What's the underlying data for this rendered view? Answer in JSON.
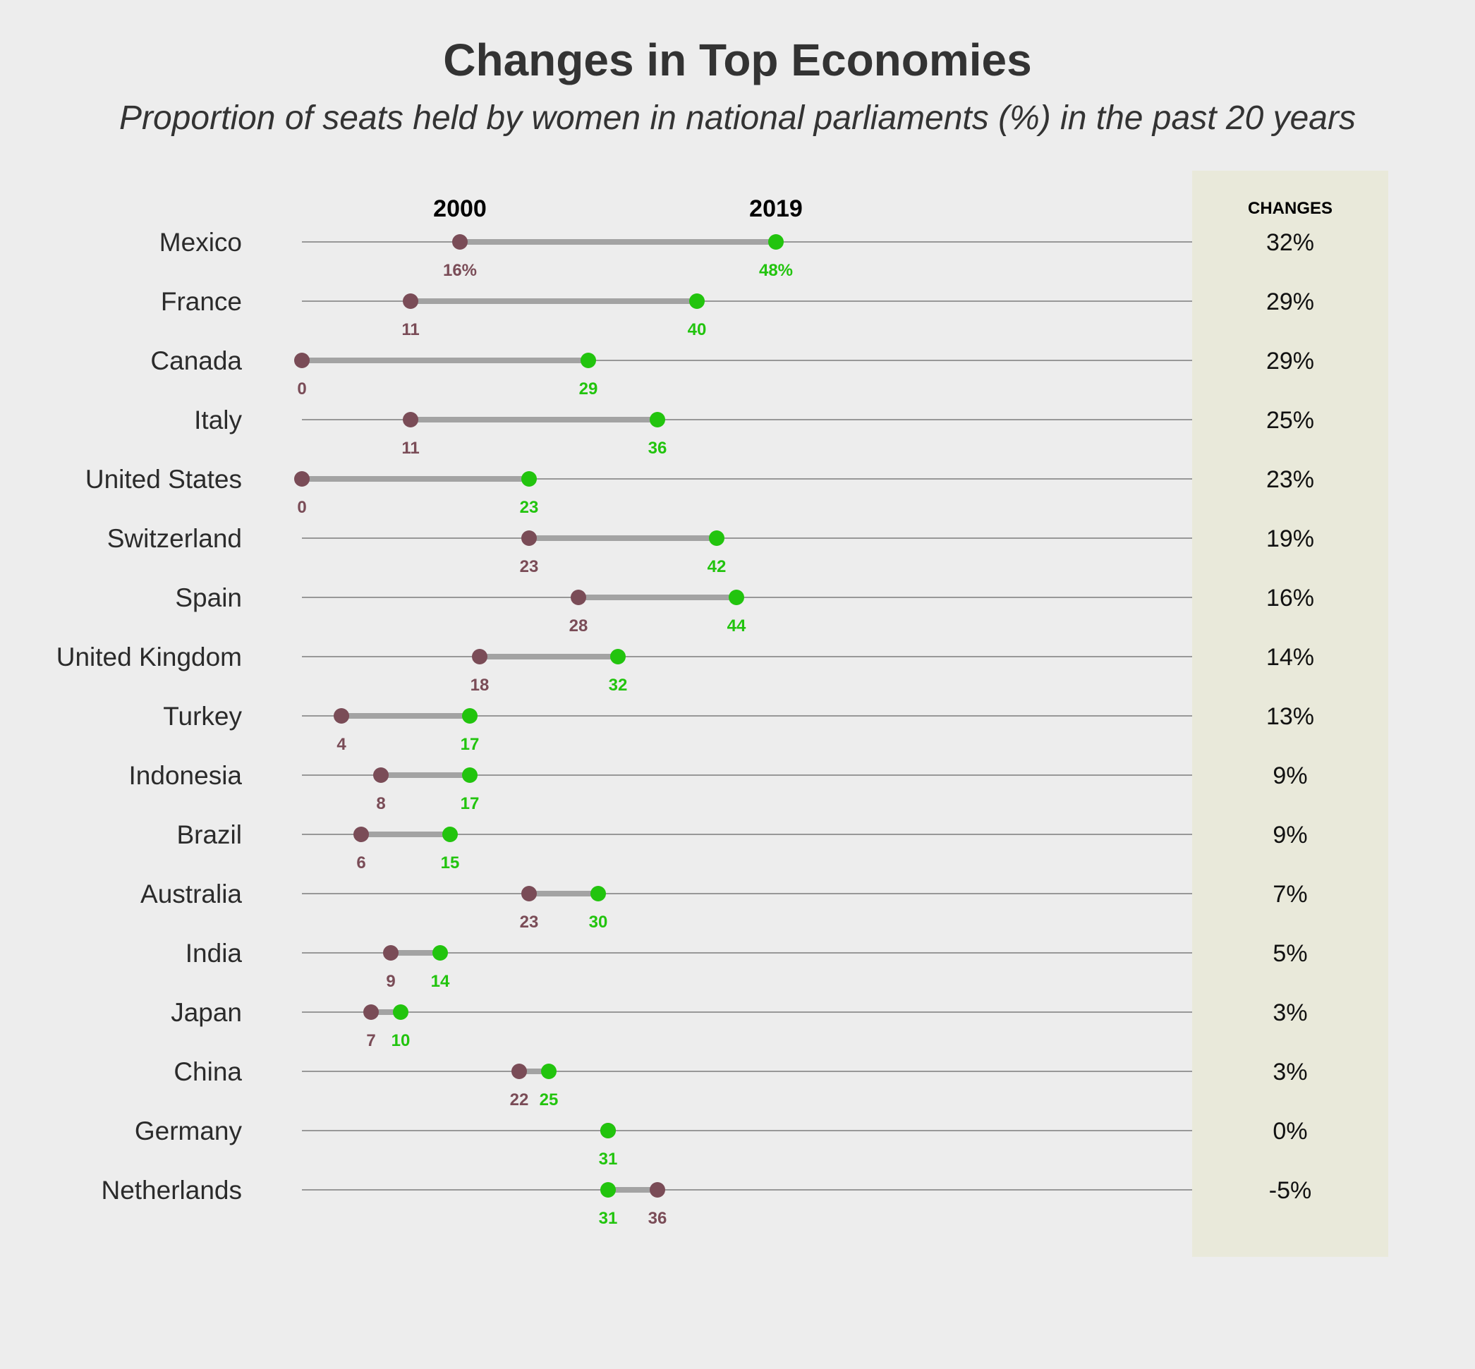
{
  "chart_data": {
    "type": "dumbbell",
    "title": "Changes in Top Economies",
    "subtitle": "Proportion of seats held by women in national parliaments (%) in the past 20 years",
    "start_label": "2000",
    "end_label": "2019",
    "changes_header": "CHANGES",
    "colors": {
      "start": "#7a4c57",
      "end": "#22c40e",
      "connector": "#a3a3a3",
      "gridline": "#666666",
      "background": "#ededed",
      "changes_panel": "#e9e9da"
    },
    "rows": [
      {
        "country": "Mexico",
        "start": 16,
        "end": 48,
        "start_label": "16%",
        "end_label": "48%",
        "change": "32%"
      },
      {
        "country": "France",
        "start": 11,
        "end": 40,
        "start_label": "11",
        "end_label": "40",
        "change": "29%"
      },
      {
        "country": "Canada",
        "start": 0,
        "end": 29,
        "start_label": "0",
        "end_label": "29",
        "change": "29%"
      },
      {
        "country": "Italy",
        "start": 11,
        "end": 36,
        "start_label": "11",
        "end_label": "36",
        "change": "25%"
      },
      {
        "country": "United States",
        "start": 0,
        "end": 23,
        "start_label": "0",
        "end_label": "23",
        "change": "23%"
      },
      {
        "country": "Switzerland",
        "start": 23,
        "end": 42,
        "start_label": "23",
        "end_label": "42",
        "change": "19%"
      },
      {
        "country": "Spain",
        "start": 28,
        "end": 44,
        "start_label": "28",
        "end_label": "44",
        "change": "16%"
      },
      {
        "country": "United Kingdom",
        "start": 18,
        "end": 32,
        "start_label": "18",
        "end_label": "32",
        "change": "14%"
      },
      {
        "country": "Turkey",
        "start": 4,
        "end": 17,
        "start_label": "4",
        "end_label": "17",
        "change": "13%"
      },
      {
        "country": "Indonesia",
        "start": 8,
        "end": 17,
        "start_label": "8",
        "end_label": "17",
        "change": "9%"
      },
      {
        "country": "Brazil",
        "start": 6,
        "end": 15,
        "start_label": "6",
        "end_label": "15",
        "change": "9%"
      },
      {
        "country": "Australia",
        "start": 23,
        "end": 30,
        "start_label": "23",
        "end_label": "30",
        "change": "7%"
      },
      {
        "country": "India",
        "start": 9,
        "end": 14,
        "start_label": "9",
        "end_label": "14",
        "change": "5%"
      },
      {
        "country": "Japan",
        "start": 7,
        "end": 10,
        "start_label": "7",
        "end_label": "10",
        "change": "3%"
      },
      {
        "country": "China",
        "start": 22,
        "end": 25,
        "start_label": "22",
        "end_label": "25",
        "change": "3%"
      },
      {
        "country": "Germany",
        "start": 31,
        "end": 31,
        "start_label": "",
        "end_label": "31",
        "change": "0%"
      },
      {
        "country": "Netherlands",
        "start": 36,
        "end": 31,
        "start_label": "36",
        "end_label": "31",
        "change": "-5%"
      }
    ],
    "xlim": [
      0,
      90
    ]
  }
}
